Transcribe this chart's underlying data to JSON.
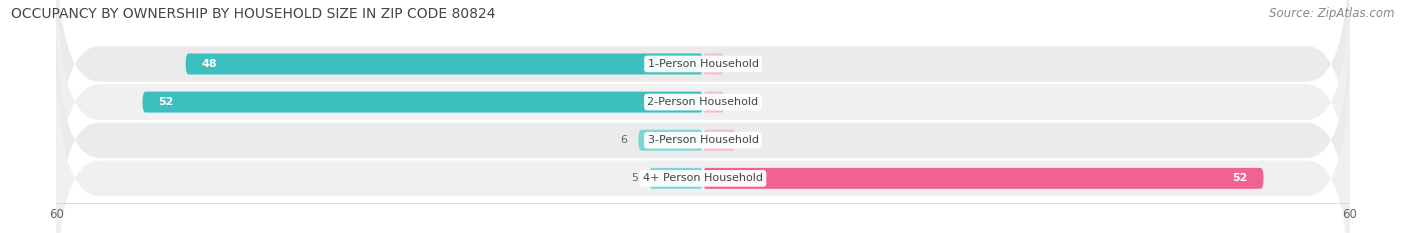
{
  "title": "OCCUPANCY BY OWNERSHIP BY HOUSEHOLD SIZE IN ZIP CODE 80824",
  "source": "Source: ZipAtlas.com",
  "categories": [
    "1-Person Household",
    "2-Person Household",
    "3-Person Household",
    "4+ Person Household"
  ],
  "owner_values": [
    48,
    52,
    6,
    5
  ],
  "renter_values": [
    2,
    2,
    3,
    52
  ],
  "owner_color_dark": "#3DBFBF",
  "owner_color_light": "#7DD5D5",
  "renter_color_dark": "#F06292",
  "renter_color_light": "#F8BBD0",
  "row_bg_color": "#EBEBEB",
  "row_alt_color": "#F5F5F5",
  "xlim": [
    -60,
    60
  ],
  "title_fontsize": 10,
  "source_fontsize": 8.5,
  "label_fontsize": 8,
  "value_fontsize": 8,
  "tick_fontsize": 8.5,
  "legend_fontsize": 8.5,
  "background_color": "#FFFFFF"
}
